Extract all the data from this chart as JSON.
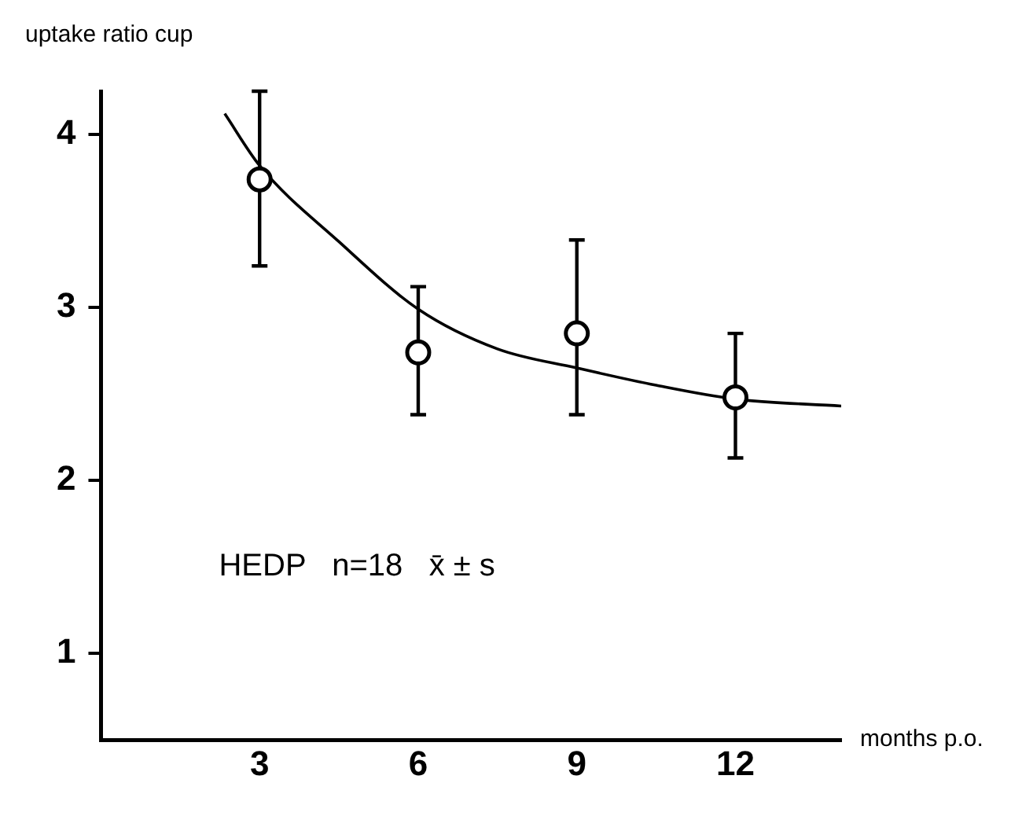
{
  "chart_data": {
    "type": "scatter",
    "xlabel": "months p.o.",
    "ylabel": "uptake ratio cup",
    "annotations": [
      "HEDP   n=18   x̄ ± s"
    ],
    "xlim": [
      0,
      14
    ],
    "xticks": [
      3,
      6,
      9,
      12
    ],
    "ylim": [
      0.5,
      4.25
    ],
    "yticks": [
      1,
      2,
      3,
      4
    ],
    "marker": "circle",
    "legend": false,
    "series": [
      {
        "color": "#000000",
        "x": [
          3,
          6,
          9,
          12
        ],
        "values": [
          3.74,
          2.74,
          2.85,
          2.48
        ],
        "errors": [
          [
            3.24,
            4.25
          ],
          [
            2.38,
            3.12
          ],
          [
            2.38,
            3.39
          ],
          [
            2.13,
            2.85
          ]
        ]
      },
      {
        "type": "line",
        "color": "#000000",
        "marker": "none",
        "x": [
          2.34,
          3,
          4.5,
          6,
          7.5,
          9,
          10.5,
          12,
          14
        ],
        "values": [
          4.12,
          3.82,
          3.38,
          2.99,
          2.76,
          2.65,
          2.55,
          2.47,
          2.43
        ]
      }
    ]
  }
}
